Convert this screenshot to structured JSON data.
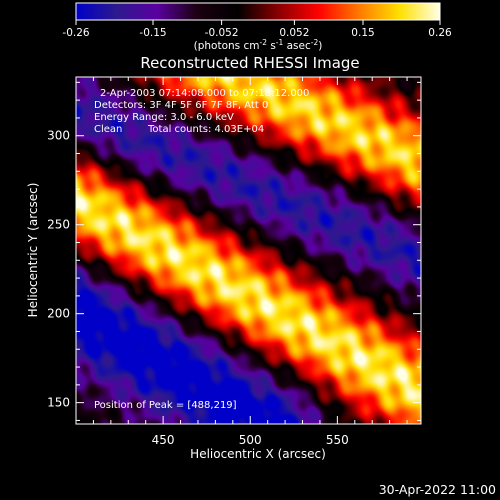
{
  "colorbar": {
    "min": -0.26,
    "max": 0.26,
    "tick_labels": [
      "-0.26",
      "-0.15",
      "-0.052",
      "0.052",
      "0.15",
      "0.26"
    ],
    "unit_parts": [
      "(photons cm",
      "-2",
      " s",
      "-1",
      " asec",
      "-2",
      ")"
    ],
    "colors": [
      "#0000c8",
      "#2c1a8e",
      "#5a00a0",
      "#1a0010",
      "#000000",
      "#8a0000",
      "#ff0000",
      "#ff7a00",
      "#ffe000",
      "#ffffe8"
    ]
  },
  "chart_data": {
    "type": "heatmap",
    "title": "Reconstructed RHESSI Image",
    "xlabel": "Heliocentric X (arcsec)",
    "ylabel": "Heliocentric Y (arcsec)",
    "xlim": [
      400,
      598
    ],
    "ylim": [
      138,
      333
    ],
    "x_ticks": [
      450,
      500,
      550
    ],
    "y_ticks": [
      150,
      200,
      250,
      300
    ],
    "annotations": [
      "2-Apr-2003 07:14:08.000 to 07:18:12.000",
      "Detectors: 3F 4F 5F 6F 7F 8F, Att 0",
      "Energy Range: 3.0 - 6.0 keV",
      "Clean",
      "Total counts: 4.03E+04"
    ],
    "peak_label": "Position of Peak = [488,219]",
    "peak": [
      488,
      219
    ],
    "value_range": [
      -0.26,
      0.26
    ],
    "sources": [
      {
        "type": "ridge",
        "from": [
          395,
          265
        ],
        "to": [
          600,
          155
        ],
        "peak_value": 0.26,
        "width_arcsec": 38
      },
      {
        "type": "ridge",
        "from": [
          462,
          345
        ],
        "to": [
          600,
          285
        ],
        "peak_value": 0.24,
        "width_arcsec": 36
      },
      {
        "type": "trough",
        "from": [
          395,
          315
        ],
        "to": [
          600,
          230
        ],
        "peak_value": -0.18,
        "width_arcsec": 30
      },
      {
        "type": "trough",
        "from": [
          395,
          205
        ],
        "to": [
          510,
          138
        ],
        "peak_value": -0.26,
        "width_arcsec": 40
      }
    ]
  },
  "timestamp": "30-Apr-2022 11:00"
}
